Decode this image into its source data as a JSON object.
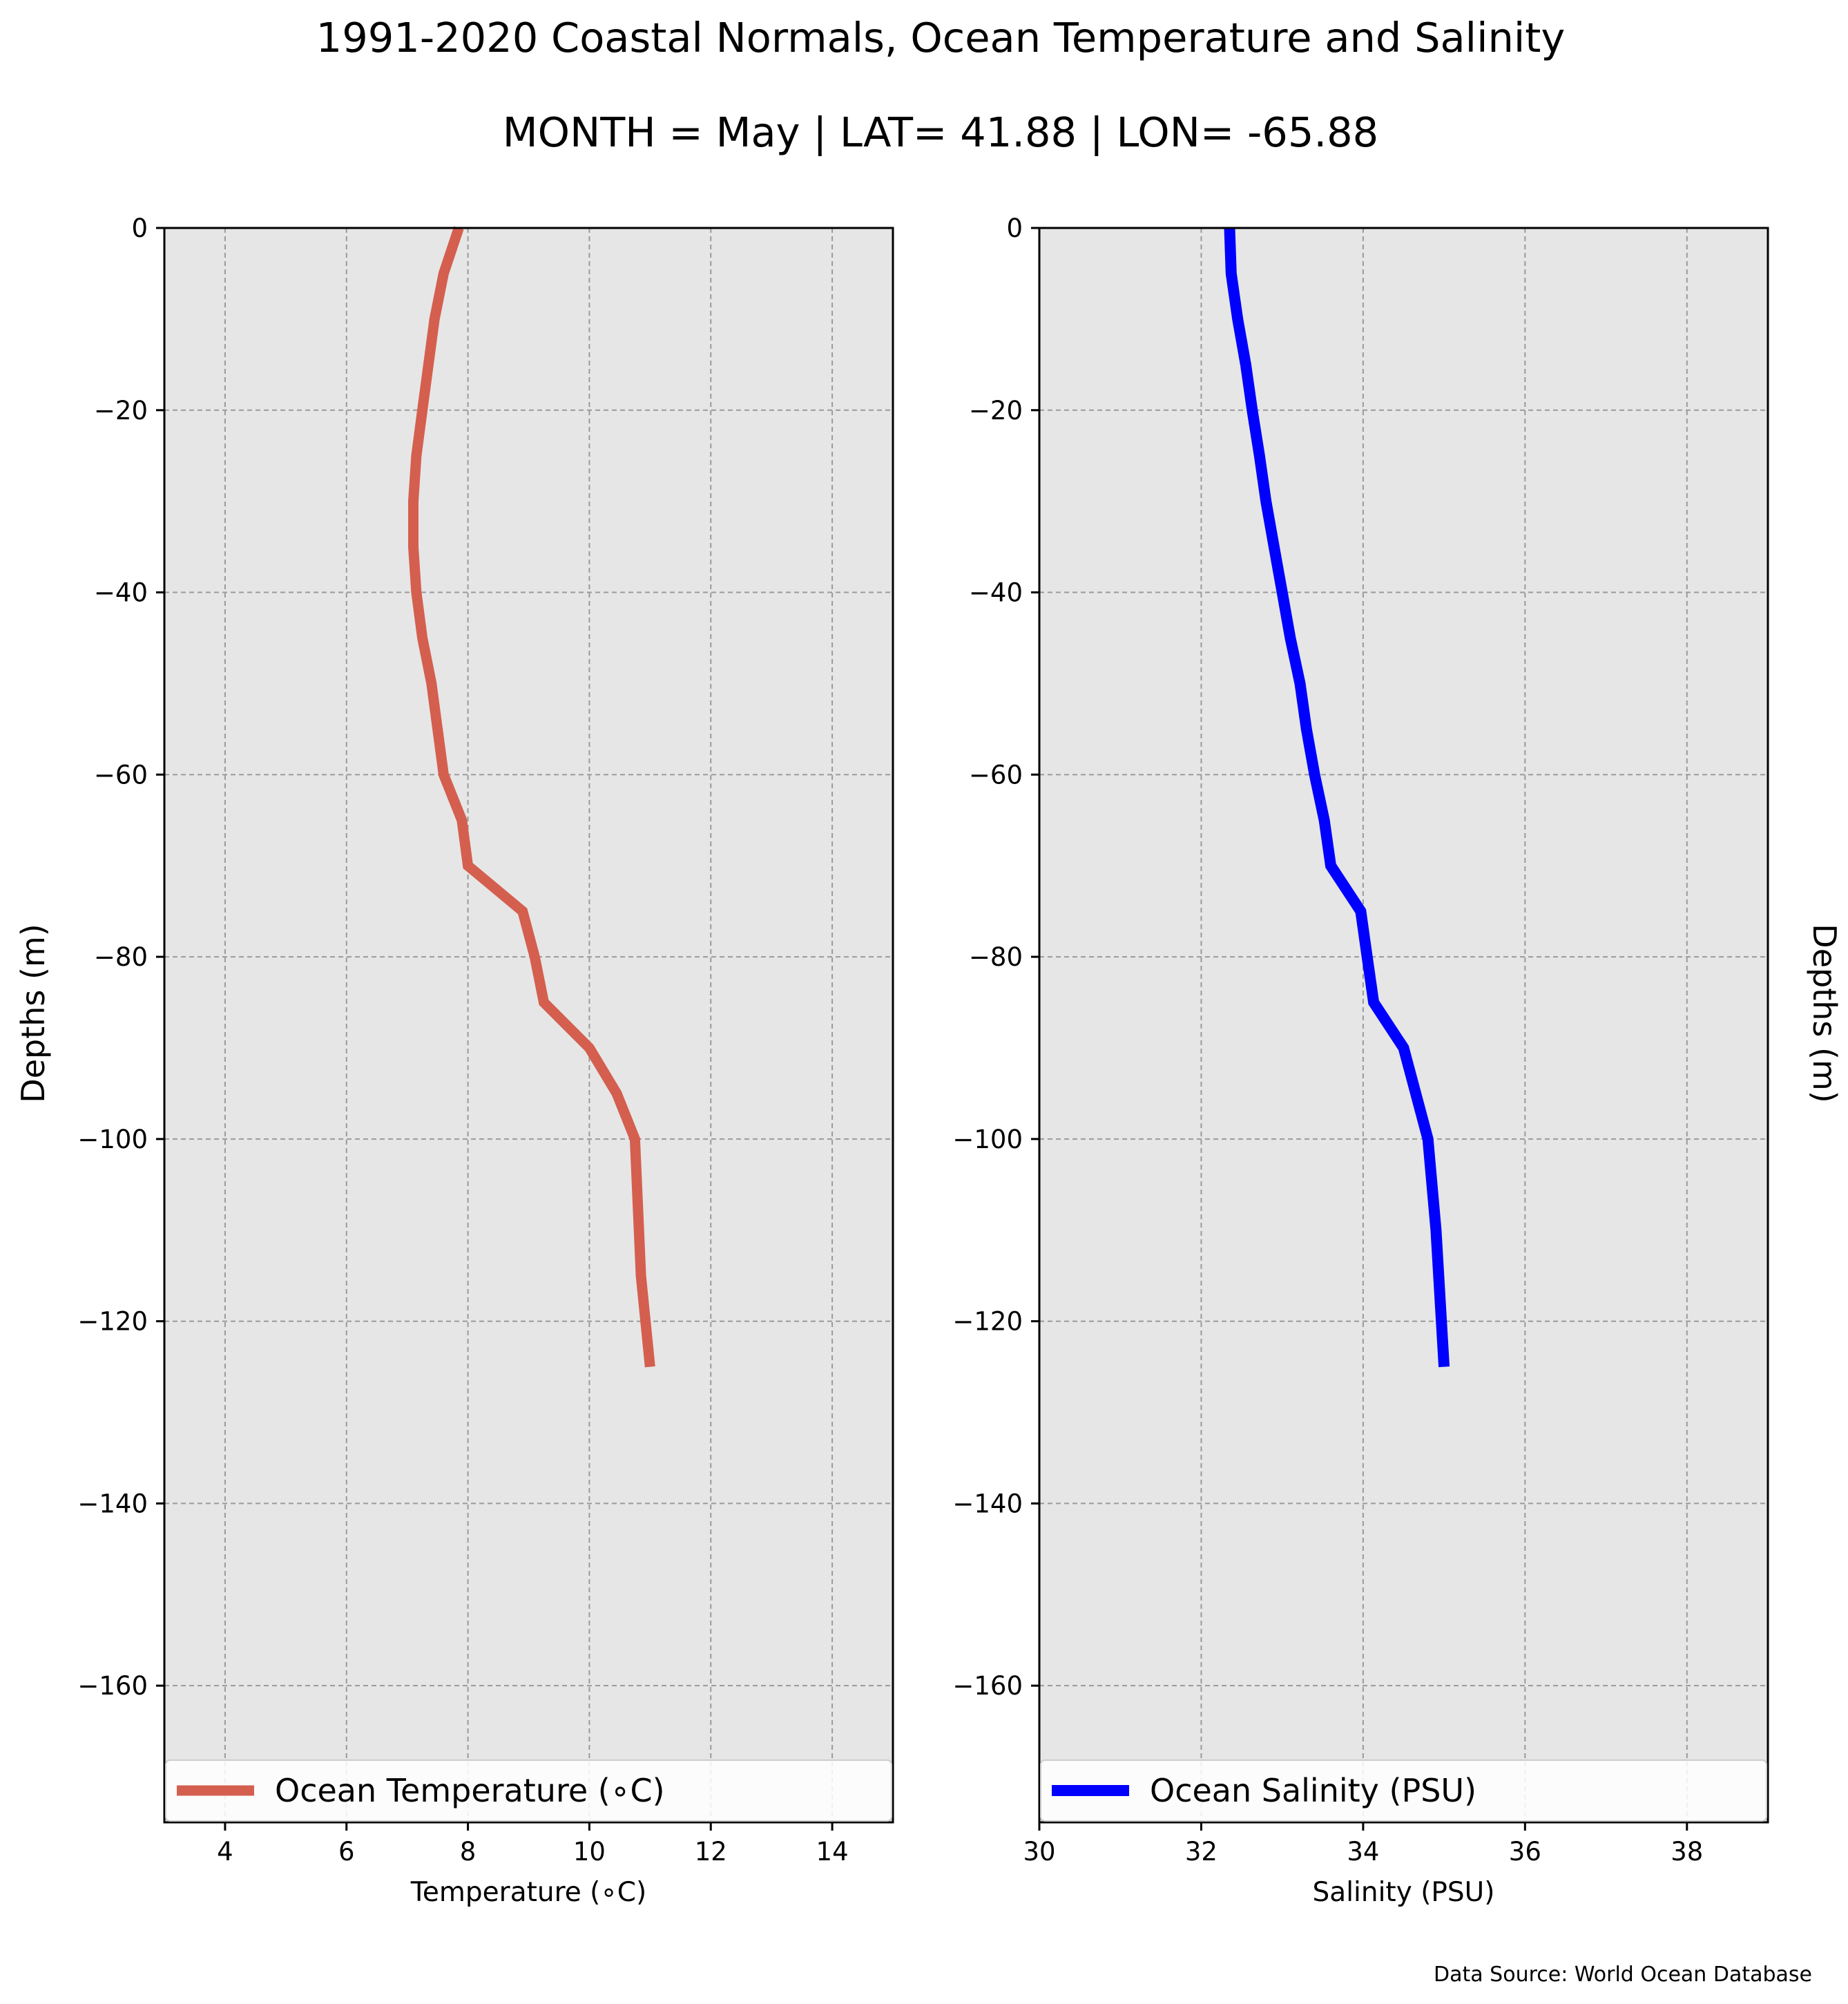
{
  "title": "1991-2020 Coastal Normals, Ocean Temperature and Salinity",
  "subtitle": "MONTH = May | LAT= 41.88 | LON= -65.88",
  "source": "Data Source: World Ocean Database",
  "chart_data": [
    {
      "type": "line",
      "xlabel": "Temperature ($^\\circ$C)",
      "xlabel_display": "Temperature (∘C)",
      "ylabel": "Depths (m)",
      "ylabel_position": "left",
      "xlim": [
        3,
        15
      ],
      "ylim": [
        -175,
        0
      ],
      "xticks": [
        4,
        6,
        8,
        10,
        12,
        14
      ],
      "xtick_labels": [
        "4",
        "6",
        "8",
        "10",
        "12",
        "14"
      ],
      "yticks": [
        0,
        -20,
        -40,
        -60,
        -80,
        -100,
        -120,
        -140,
        -160
      ],
      "ytick_labels": [
        "0",
        "−20",
        "−40",
        "−60",
        "−80",
        "−100",
        "−120",
        "−140",
        "−160"
      ],
      "grid": true,
      "background": "#e6e6e6",
      "legend_position": "bottom",
      "series": [
        {
          "name": "Ocean Temperature (∘C)",
          "color": "#d45f4f",
          "x": [
            7.85,
            7.6,
            7.45,
            7.35,
            7.25,
            7.15,
            7.1,
            7.1,
            7.15,
            7.25,
            7.4,
            7.5,
            7.6,
            7.9,
            8.0,
            8.9,
            9.1,
            9.25,
            10.0,
            10.45,
            10.75,
            10.85,
            11.0
          ],
          "y": [
            0,
            -5,
            -10,
            -15,
            -20,
            -25,
            -30,
            -35,
            -40,
            -45,
            -50,
            -55,
            -60,
            -65,
            -70,
            -75,
            -80,
            -85,
            -90,
            -95,
            -100,
            -115,
            -125
          ]
        }
      ]
    },
    {
      "type": "line",
      "xlabel": "Salinity (PSU)",
      "ylabel": "Depths (m)",
      "ylabel_position": "right",
      "xlim": [
        30,
        39
      ],
      "ylim": [
        -175,
        0
      ],
      "xticks": [
        30,
        32,
        34,
        36,
        38
      ],
      "xtick_labels": [
        "30",
        "32",
        "34",
        "36",
        "38"
      ],
      "yticks": [
        0,
        -20,
        -40,
        -60,
        -80,
        -100,
        -120,
        -140,
        -160
      ],
      "ytick_labels": [
        "0",
        "−20",
        "−40",
        "−60",
        "−80",
        "−100",
        "−120",
        "−140",
        "−160"
      ],
      "grid": true,
      "background": "#e6e6e6",
      "legend_position": "bottom",
      "series": [
        {
          "name": "Ocean Salinity (PSU)",
          "color": "#0000ff",
          "x": [
            32.35,
            32.37,
            32.45,
            32.55,
            32.63,
            32.72,
            32.8,
            32.9,
            33.0,
            33.1,
            33.22,
            33.3,
            33.4,
            33.52,
            33.6,
            33.97,
            34.05,
            34.13,
            34.5,
            34.65,
            34.8,
            34.9,
            35.0
          ],
          "y": [
            0,
            -5,
            -10,
            -15,
            -20,
            -25,
            -30,
            -35,
            -40,
            -45,
            -50,
            -55,
            -60,
            -65,
            -70,
            -75,
            -80,
            -85,
            -90,
            -95,
            -100,
            -110,
            -125
          ]
        }
      ]
    }
  ]
}
